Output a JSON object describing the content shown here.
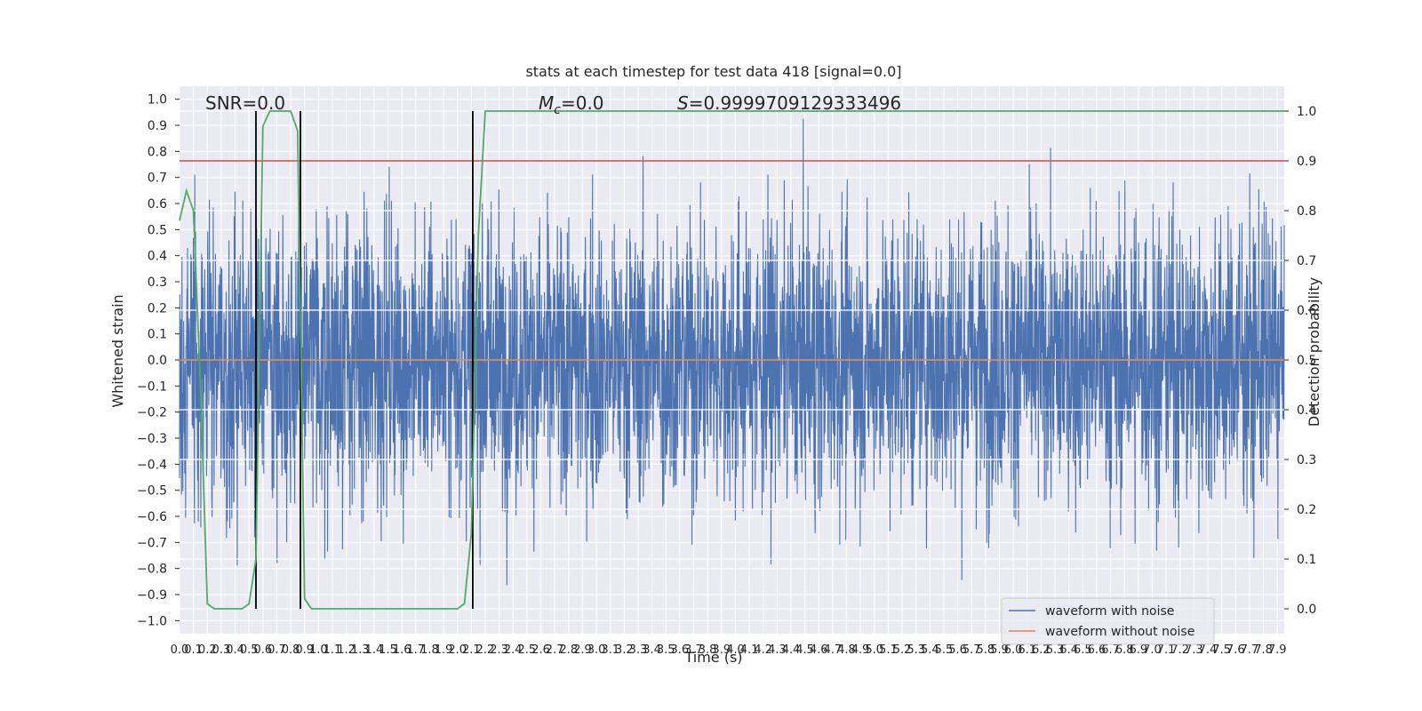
{
  "chart_data": {
    "type": "line",
    "title": "stats at each timestep for test data 418 [signal=0.0]",
    "xlabel": "Time (s)",
    "ylabel": "Whitened strain",
    "y2label": "Detection probability",
    "xlim": [
      0.0,
      7.95
    ],
    "ylim": [
      -1.05,
      1.05
    ],
    "y2lim": [
      -0.05,
      1.05
    ],
    "x_ticks": [
      "0.0",
      "0.1",
      "0.2",
      "0.3",
      "0.4",
      "0.5",
      "0.6",
      "0.7",
      "0.8",
      "0.9",
      "1.0",
      "1.1",
      "1.2",
      "1.3",
      "1.4",
      "1.5",
      "1.6",
      "1.7",
      "1.8",
      "1.9",
      "2.0",
      "2.1",
      "2.2",
      "2.3",
      "2.4",
      "2.5",
      "2.6",
      "2.7",
      "2.8",
      "2.9",
      "3.0",
      "3.1",
      "3.2",
      "3.3",
      "3.4",
      "3.5",
      "3.6",
      "3.7",
      "3.8",
      "3.9",
      "4.0",
      "4.1",
      "4.2",
      "4.3",
      "4.4",
      "4.5",
      "4.6",
      "4.7",
      "4.8",
      "4.9",
      "5.0",
      "5.1",
      "5.2",
      "5.3",
      "5.4",
      "5.5",
      "5.6",
      "5.7",
      "5.8",
      "5.9",
      "6.0",
      "6.1",
      "6.2",
      "6.3",
      "6.4",
      "6.5",
      "6.6",
      "6.7",
      "6.8",
      "6.9",
      "7.0",
      "7.1",
      "7.2",
      "7.3",
      "7.4",
      "7.5",
      "7.6",
      "7.7",
      "7.8",
      "7.9"
    ],
    "y_ticks": [
      "1.0",
      "0.9",
      "0.8",
      "0.7",
      "0.6",
      "0.5",
      "0.4",
      "0.3",
      "0.2",
      "0.1",
      "0.0",
      "−0.1",
      "−0.2",
      "−0.3",
      "−0.4",
      "−0.5",
      "−0.6",
      "−0.7",
      "−0.8",
      "−0.9",
      "−1.0"
    ],
    "y2_ticks": [
      "1.0",
      "0.9",
      "0.8",
      "0.7",
      "0.6",
      "0.5",
      "0.4",
      "0.3",
      "0.2",
      "0.1",
      "0.0"
    ],
    "annotations": {
      "snr": "SNR=0.0",
      "mc_symbol": "M",
      "mc_sub": "c",
      "mc_value": "=0.0",
      "s_symbol": "S",
      "s_value": "=0.9999709129333496"
    },
    "series": [
      {
        "name": "waveform with noise",
        "color": "#4c72b0",
        "description": "dense noise, roughly ±0.4 with spikes to ±1.0"
      },
      {
        "name": "waveform without noise",
        "color": "#dd8452",
        "values": "constant 0.0"
      }
    ],
    "detection_probability": {
      "color": "#55a868",
      "x": [
        0.0,
        0.05,
        0.1,
        0.15,
        0.2,
        0.25,
        0.3,
        0.35,
        0.4,
        0.45,
        0.5,
        0.55,
        0.6,
        0.65,
        0.7,
        0.75,
        0.8,
        0.85,
        0.9,
        0.95,
        1.0,
        1.2,
        1.5,
        1.8,
        2.0,
        2.05,
        2.1,
        2.15,
        2.2,
        7.95
      ],
      "y": [
        0.78,
        0.84,
        0.8,
        0.45,
        0.01,
        0.0,
        0.0,
        0.0,
        0.0,
        0.0,
        0.01,
        0.1,
        0.97,
        1.0,
        1.0,
        1.0,
        1.0,
        0.96,
        0.02,
        0.0,
        0.0,
        0.0,
        0.0,
        0.0,
        0.0,
        0.01,
        0.15,
        0.75,
        1.0,
        1.0
      ]
    },
    "threshold_line": {
      "color": "#c44e52",
      "y2": 0.9
    },
    "event_markers_x": [
      0.55,
      0.87,
      2.11
    ],
    "legend_placement": "lower-right",
    "grid": true
  }
}
